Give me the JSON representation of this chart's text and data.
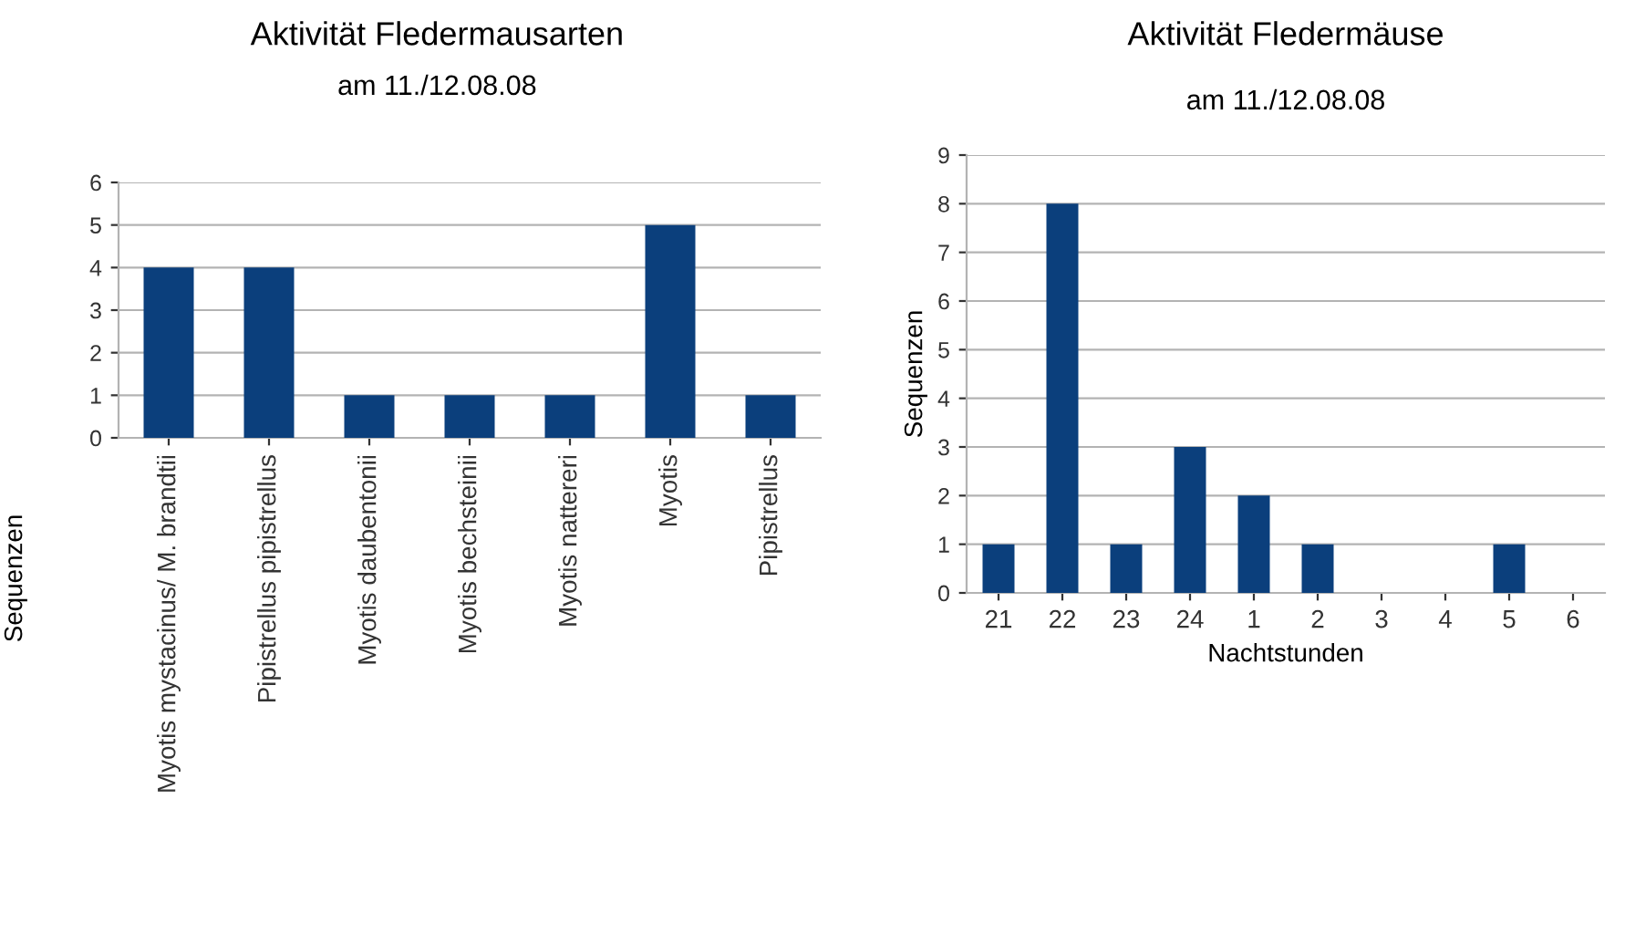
{
  "chart_data": [
    {
      "type": "bar",
      "title": "Aktivität Fledermausarten",
      "subtitle": "am 11./12.08.08",
      "ylabel": "Sequenzen",
      "categories": [
        "Myotis mystacinus/ M. brandtii",
        "Pipistrellus pipistrellus",
        "Myotis daubentonii",
        "Myotis bechsteinii",
        "Myotis nattereri",
        "Myotis",
        "Pipistrellus"
      ],
      "values": [
        4,
        4,
        1,
        1,
        1,
        5,
        1
      ],
      "color": "#0b3f7c",
      "ylim": [
        0,
        6
      ],
      "yticks": [
        0,
        1,
        2,
        3,
        4,
        5,
        6
      ],
      "grid": "y",
      "legend": false
    },
    {
      "type": "bar",
      "title": "Aktivität Fledermäuse",
      "subtitle": "am 11./12.08.08",
      "ylabel": "Sequenzen",
      "xlabel": "Nachtstunden",
      "categories": [
        "21",
        "22",
        "23",
        "24",
        "1",
        "2",
        "3",
        "4",
        "5",
        "6"
      ],
      "values": [
        1,
        8,
        1,
        3,
        2,
        1,
        0,
        0,
        1,
        0
      ],
      "color": "#0b3f7c",
      "ylim": [
        0,
        9
      ],
      "yticks": [
        0,
        1,
        2,
        3,
        4,
        5,
        6,
        7,
        8,
        9
      ],
      "grid": "y",
      "legend": false
    }
  ]
}
